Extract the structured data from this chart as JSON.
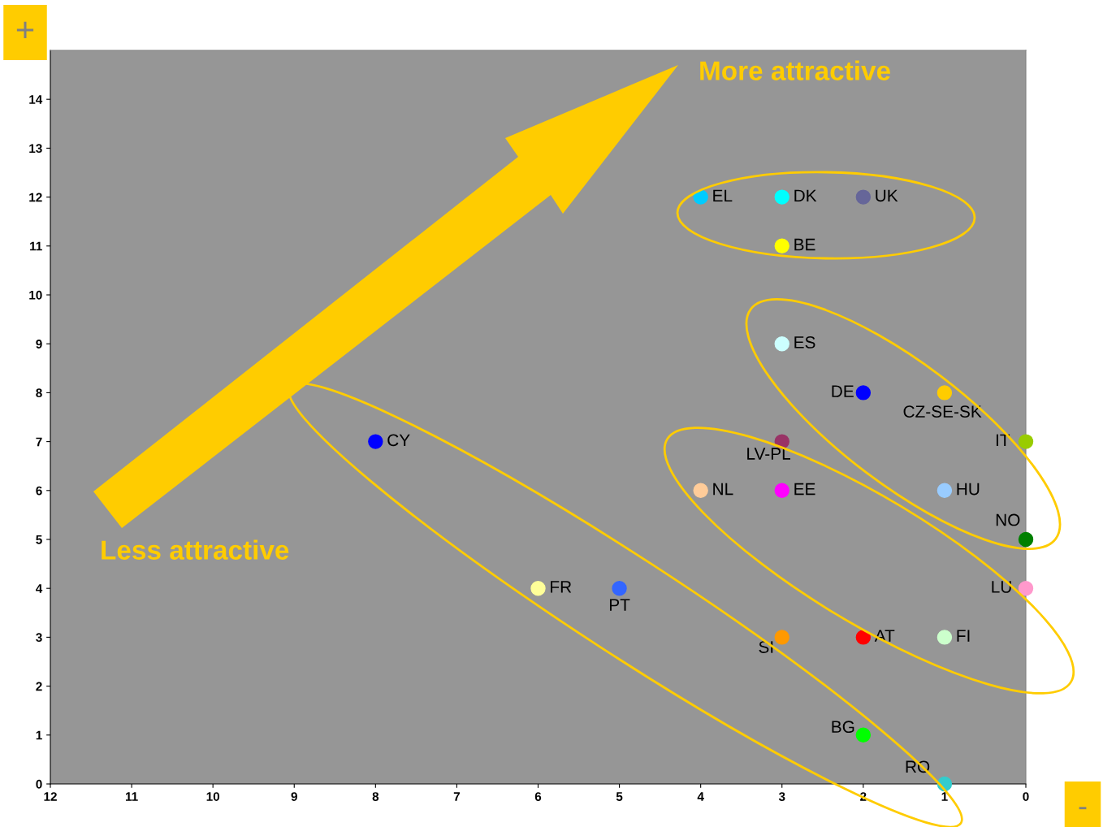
{
  "chart_data": {
    "type": "scatter",
    "xlim": [
      12,
      0
    ],
    "ylim": [
      0,
      15
    ],
    "xticks": [
      12,
      11,
      10,
      9,
      8,
      7,
      6,
      5,
      4,
      3,
      2,
      1,
      0
    ],
    "yticks": [
      0,
      1,
      2,
      3,
      4,
      5,
      6,
      7,
      8,
      9,
      10,
      11,
      12,
      13,
      14
    ],
    "grid": false,
    "legend": false,
    "marker": "circle",
    "annotations": [
      "More attractive",
      "Less attractive",
      "+",
      "-"
    ],
    "series": [
      {
        "name": "EL",
        "color": "#00ccff",
        "x": [
          4
        ],
        "values": [
          12
        ]
      },
      {
        "name": "DK",
        "color": "#00ffff",
        "x": [
          3
        ],
        "values": [
          12
        ]
      },
      {
        "name": "UK",
        "color": "#666699",
        "x": [
          2
        ],
        "values": [
          12
        ]
      },
      {
        "name": "BE",
        "color": "#ffff00",
        "x": [
          3
        ],
        "values": [
          11
        ]
      },
      {
        "name": "ES",
        "color": "#ccffff",
        "x": [
          3
        ],
        "values": [
          9
        ]
      },
      {
        "name": "DE",
        "color": "#0000ff",
        "x": [
          2
        ],
        "values": [
          8
        ]
      },
      {
        "name": "CZ-SE-SK",
        "color": "#ffcc00",
        "x": [
          1
        ],
        "values": [
          8
        ]
      },
      {
        "name": "IT",
        "color": "#99cc00",
        "x": [
          0
        ],
        "values": [
          7
        ]
      },
      {
        "name": "LV-PL",
        "color": "#993366",
        "x": [
          3
        ],
        "values": [
          7
        ]
      },
      {
        "name": "NL",
        "color": "#ffcc99",
        "x": [
          4
        ],
        "values": [
          6
        ]
      },
      {
        "name": "EE",
        "color": "#ff00ff",
        "x": [
          3
        ],
        "values": [
          6
        ]
      },
      {
        "name": "HU",
        "color": "#99ccff",
        "x": [
          1
        ],
        "values": [
          6
        ]
      },
      {
        "name": "NO",
        "color": "#008000",
        "x": [
          0
        ],
        "values": [
          5
        ]
      },
      {
        "name": "LU",
        "color": "#ff99cc",
        "x": [
          0
        ],
        "values": [
          4
        ]
      },
      {
        "name": "CY",
        "color": "#0000ff",
        "x": [
          8
        ],
        "values": [
          7
        ]
      },
      {
        "name": "FR",
        "color": "#ffff99",
        "x": [
          6
        ],
        "values": [
          4
        ]
      },
      {
        "name": "PT",
        "color": "#3366ff",
        "x": [
          5
        ],
        "values": [
          4
        ]
      },
      {
        "name": "SI",
        "color": "#ff9900",
        "x": [
          3
        ],
        "values": [
          3
        ]
      },
      {
        "name": "AT",
        "color": "#ff0000",
        "x": [
          2
        ],
        "values": [
          3
        ]
      },
      {
        "name": "FI",
        "color": "#ccffcc",
        "x": [
          1
        ],
        "values": [
          3
        ]
      },
      {
        "name": "BG",
        "color": "#00ff00",
        "x": [
          2
        ],
        "values": [
          1
        ]
      },
      {
        "name": "RO",
        "color": "#33cccc",
        "x": [
          1
        ],
        "values": [
          0
        ]
      }
    ]
  }
}
